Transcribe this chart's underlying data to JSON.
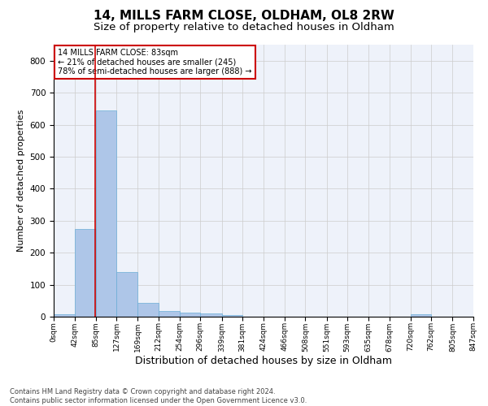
{
  "title": "14, MILLS FARM CLOSE, OLDHAM, OL8 2RW",
  "subtitle": "Size of property relative to detached houses in Oldham",
  "xlabel": "Distribution of detached houses by size in Oldham",
  "ylabel": "Number of detached properties",
  "bar_values": [
    8,
    274,
    644,
    140,
    42,
    18,
    12,
    10,
    6,
    0,
    0,
    0,
    0,
    0,
    0,
    0,
    0,
    8,
    0,
    0,
    0
  ],
  "bin_edges": [
    0,
    42,
    85,
    127,
    169,
    212,
    254,
    296,
    339,
    381,
    424,
    466,
    508,
    551,
    593,
    635,
    678,
    720,
    762,
    805,
    847
  ],
  "tick_labels": [
    "0sqm",
    "42sqm",
    "85sqm",
    "127sqm",
    "169sqm",
    "212sqm",
    "254sqm",
    "296sqm",
    "339sqm",
    "381sqm",
    "424sqm",
    "466sqm",
    "508sqm",
    "551sqm",
    "593sqm",
    "635sqm",
    "678sqm",
    "720sqm",
    "762sqm",
    "805sqm",
    "847sqm"
  ],
  "property_size": 83,
  "bar_color": "#aec6e8",
  "bar_edge_color": "#6aaed6",
  "red_line_color": "#cc0000",
  "annotation_line1": "14 MILLS FARM CLOSE: 83sqm",
  "annotation_line2": "← 21% of detached houses are smaller (245)",
  "annotation_line3": "78% of semi-detached houses are larger (888) →",
  "annotation_box_color": "#cc0000",
  "ylim": [
    0,
    850
  ],
  "yticks": [
    0,
    100,
    200,
    300,
    400,
    500,
    600,
    700,
    800
  ],
  "grid_color": "#cccccc",
  "bg_color": "#eef2fa",
  "footer_line1": "Contains HM Land Registry data © Crown copyright and database right 2024.",
  "footer_line2": "Contains public sector information licensed under the Open Government Licence v3.0.",
  "title_fontsize": 11,
  "subtitle_fontsize": 9.5,
  "tick_fontsize": 6.5,
  "ylabel_fontsize": 8,
  "xlabel_fontsize": 9,
  "footer_fontsize": 6,
  "annotation_fontsize": 7
}
